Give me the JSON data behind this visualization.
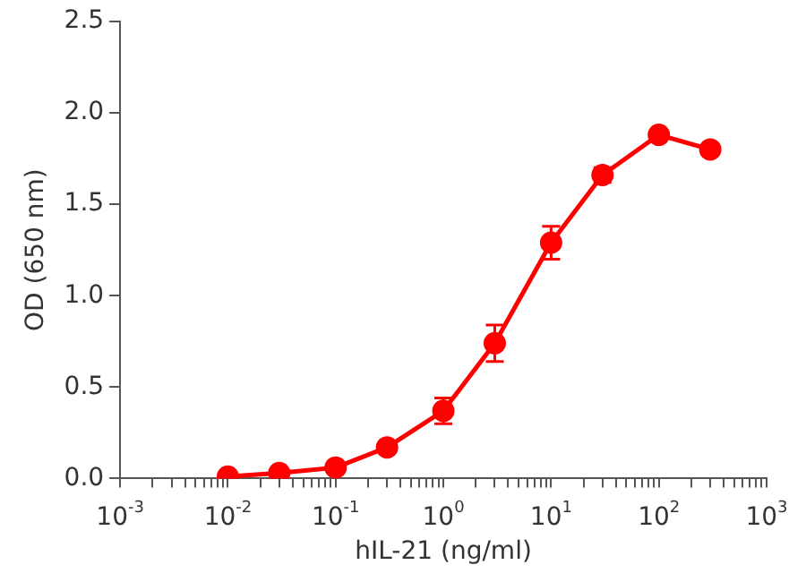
{
  "chart_data": {
    "type": "line",
    "xlabel": "hIL-21 (ng/ml)",
    "ylabel": "OD (650 nm)",
    "log": "x",
    "grid": false,
    "legend": false,
    "marker": "circle",
    "line_style": "solid",
    "xlim": [
      0.001,
      1000
    ],
    "ylim": [
      0,
      2.5
    ],
    "xticks": [
      {
        "value": 0.001,
        "label": "10$^{-3}$"
      },
      {
        "value": 0.002,
        "label": null
      },
      {
        "value": 0.003,
        "label": null
      },
      {
        "value": 0.004,
        "label": null
      },
      {
        "value": 0.005,
        "label": null
      },
      {
        "value": 0.006,
        "label": null
      },
      {
        "value": 0.007,
        "label": null
      },
      {
        "value": 0.008,
        "label": null
      },
      {
        "value": 0.009,
        "label": null
      },
      {
        "value": 0.01,
        "label": "10$^{-2}$"
      },
      {
        "value": 0.02,
        "label": null
      },
      {
        "value": 0.03,
        "label": null
      },
      {
        "value": 0.04,
        "label": null
      },
      {
        "value": 0.05,
        "label": null
      },
      {
        "value": 0.06,
        "label": null
      },
      {
        "value": 0.07,
        "label": null
      },
      {
        "value": 0.08,
        "label": null
      },
      {
        "value": 0.09,
        "label": null
      },
      {
        "value": 0.1,
        "label": "10$^{-1}$"
      },
      {
        "value": 0.2,
        "label": null
      },
      {
        "value": 0.3,
        "label": null
      },
      {
        "value": 0.4,
        "label": null
      },
      {
        "value": 0.5,
        "label": null
      },
      {
        "value": 0.6,
        "label": null
      },
      {
        "value": 0.7,
        "label": null
      },
      {
        "value": 0.8,
        "label": null
      },
      {
        "value": 0.9,
        "label": null
      },
      {
        "value": 1,
        "label": "10$^{0}$"
      },
      {
        "value": 2,
        "label": null
      },
      {
        "value": 3,
        "label": null
      },
      {
        "value": 4,
        "label": null
      },
      {
        "value": 5,
        "label": null
      },
      {
        "value": 6,
        "label": null
      },
      {
        "value": 7,
        "label": null
      },
      {
        "value": 8,
        "label": null
      },
      {
        "value": 9,
        "label": null
      },
      {
        "value": 10,
        "label": "10$^{1}$"
      },
      {
        "value": 20,
        "label": null
      },
      {
        "value": 30,
        "label": null
      },
      {
        "value": 40,
        "label": null
      },
      {
        "value": 50,
        "label": null
      },
      {
        "value": 60,
        "label": null
      },
      {
        "value": 70,
        "label": null
      },
      {
        "value": 80,
        "label": null
      },
      {
        "value": 90,
        "label": null
      },
      {
        "value": 100,
        "label": "10$^{2}$"
      },
      {
        "value": 200,
        "label": null
      },
      {
        "value": 300,
        "label": null
      },
      {
        "value": 400,
        "label": null
      },
      {
        "value": 500,
        "label": null
      },
      {
        "value": 600,
        "label": null
      },
      {
        "value": 700,
        "label": null
      },
      {
        "value": 800,
        "label": null
      },
      {
        "value": 900,
        "label": null
      },
      {
        "value": 1000,
        "label": "10$^{3}$"
      }
    ],
    "yticks": [
      {
        "value": 0,
        "label": "0.0"
      },
      {
        "value": 0.5,
        "label": "0.5"
      },
      {
        "value": 1,
        "label": "1.0"
      },
      {
        "value": 1.5,
        "label": "1.5"
      },
      {
        "value": 2,
        "label": "2.0"
      },
      {
        "value": 2.5,
        "label": "2.5"
      }
    ],
    "x": [
      0.01,
      0.03,
      0.1,
      0.3,
      1,
      3,
      10,
      30,
      100,
      300
    ],
    "series": [
      {
        "color": "#ff0000",
        "values": [
          0.01,
          0.03,
          0.06,
          0.17,
          0.37,
          0.74,
          1.29,
          1.66,
          1.88,
          1.8
        ],
        "errors": [
          null,
          null,
          null,
          null,
          0.07,
          0.1,
          0.09,
          0.04,
          null,
          null
        ]
      }
    ]
  }
}
